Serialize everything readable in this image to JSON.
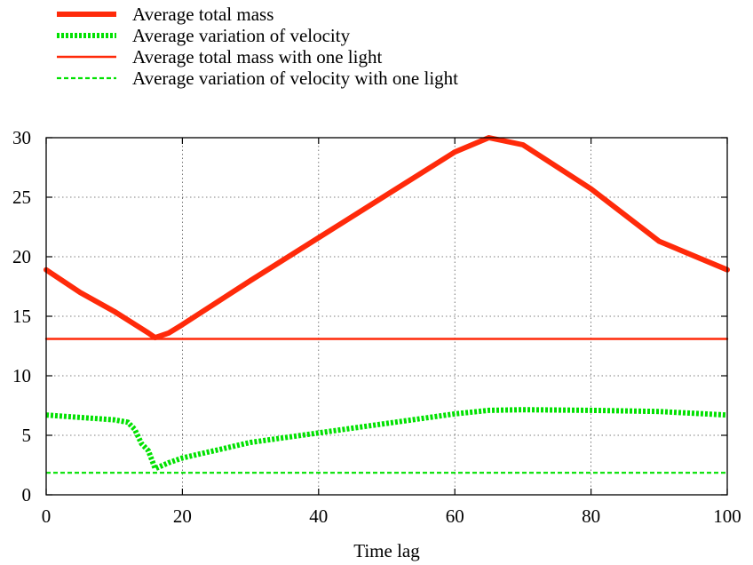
{
  "chart_data": {
    "type": "line",
    "title": "",
    "xlabel": "Time lag",
    "ylabel": "",
    "xlim": [
      0,
      100
    ],
    "ylim": [
      0,
      30
    ],
    "x_ticks": [
      0,
      20,
      40,
      60,
      80,
      100
    ],
    "y_ticks": [
      0,
      5,
      10,
      15,
      20,
      25,
      30
    ],
    "grid": true,
    "legend_position": "top-left, above plot",
    "series": [
      {
        "name": "Average total mass",
        "color": "#ff2a0a",
        "style": "solid-thick",
        "x": [
          0,
          5,
          10,
          15,
          16,
          18,
          20,
          30,
          40,
          50,
          60,
          65,
          70,
          80,
          90,
          100
        ],
        "y": [
          18.9,
          17.0,
          15.4,
          13.6,
          13.2,
          13.6,
          14.3,
          18.0,
          21.6,
          25.2,
          28.8,
          30.0,
          29.4,
          25.7,
          21.3,
          18.9
        ]
      },
      {
        "name": "Average variation of velocity",
        "color": "#00e100",
        "style": "dotted-thick",
        "x": [
          0,
          5,
          10,
          12,
          13,
          14,
          15,
          16,
          18,
          20,
          30,
          40,
          50,
          60,
          65,
          70,
          80,
          90,
          100
        ],
        "y": [
          6.7,
          6.5,
          6.3,
          6.1,
          5.5,
          4.3,
          3.7,
          2.2,
          2.7,
          3.1,
          4.4,
          5.2,
          6.0,
          6.8,
          7.1,
          7.15,
          7.1,
          7.0,
          6.7
        ]
      },
      {
        "name": "Average total mass with one light",
        "color": "#ff2a0a",
        "style": "solid-thin",
        "x": [
          0,
          100
        ],
        "y": [
          13.1,
          13.1
        ]
      },
      {
        "name": "Average variation of velocity with one light",
        "color": "#00e100",
        "style": "dashed-thin",
        "x": [
          0,
          100
        ],
        "y": [
          1.85,
          1.85
        ]
      }
    ]
  }
}
